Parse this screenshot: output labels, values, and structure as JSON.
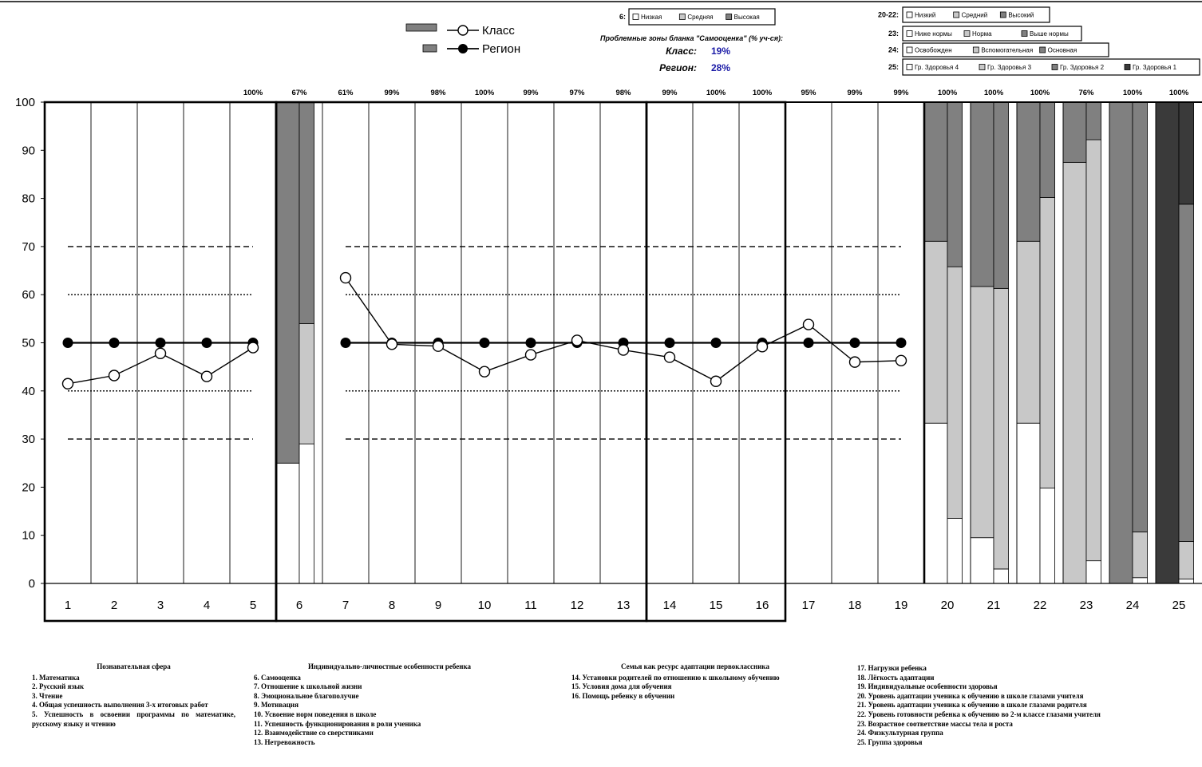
{
  "legend": {
    "class_label": "Класс",
    "region_label": "Регион"
  },
  "problem_zones": {
    "title": "Проблемные зоны бланка \"Самооценка\" (% уч-ся):",
    "class_label": "Класс:",
    "class_value": "19%",
    "region_label": "Регион:",
    "region_value": "28%",
    "value_color": "#1a1aa6"
  },
  "legend_boxes": [
    {
      "prefix": "6:",
      "items": [
        "Низкая",
        "Средняя",
        "Высокая"
      ]
    },
    {
      "prefix": "20-22:",
      "items": [
        "Низкий",
        "Средний",
        "Высокий"
      ]
    },
    {
      "prefix": "23:",
      "items": [
        "Ниже нормы",
        "Норма",
        "Выше нормы"
      ]
    },
    {
      "prefix": "24:",
      "items": [
        "Освобожден",
        "Вспомогательная",
        "Основная"
      ]
    },
    {
      "prefix": "25:",
      "items": [
        "Гр. Здоровья 4",
        "Гр. Здоровья 3",
        "Гр. Здоровья 2",
        "Гр. Здоровья 1"
      ]
    }
  ],
  "chart_data": {
    "type": "line",
    "ylim": [
      0,
      100
    ],
    "yticks": [
      0,
      10,
      20,
      30,
      40,
      50,
      60,
      70,
      80,
      90,
      100
    ],
    "categories": [
      "1",
      "2",
      "3",
      "4",
      "5",
      "6",
      "7",
      "8",
      "9",
      "10",
      "11",
      "12",
      "13",
      "14",
      "15",
      "16",
      "17",
      "18",
      "19",
      "20",
      "21",
      "22",
      "23",
      "24",
      "25"
    ],
    "top_percentages": [
      "",
      "",
      "",
      "",
      "100%",
      "67%",
      "61%",
      "99%",
      "98%",
      "100%",
      "99%",
      "97%",
      "98%",
      "99%",
      "100%",
      "100%",
      "95%",
      "99%",
      "99%",
      "100%",
      "100%",
      "100%",
      "76%",
      "100%",
      "100%"
    ],
    "series": [
      {
        "name": "Класс",
        "x": [
          "1",
          "2",
          "3",
          "4",
          "5",
          "7",
          "8",
          "9",
          "10",
          "11",
          "12",
          "13",
          "14",
          "15",
          "16",
          "17",
          "18",
          "19"
        ],
        "values": [
          41.5,
          43.2,
          47.8,
          43.0,
          49.0,
          63.5,
          49.7,
          49.3,
          44.0,
          47.5,
          50.5,
          48.5,
          47.0,
          42.0,
          49.2,
          53.8,
          46.0,
          46.3
        ]
      },
      {
        "name": "Регион",
        "x": [
          "1",
          "2",
          "3",
          "4",
          "5",
          "7",
          "8",
          "9",
          "10",
          "11",
          "12",
          "13",
          "14",
          "15",
          "16",
          "17",
          "18",
          "19"
        ],
        "values": [
          50,
          50,
          50,
          50,
          50,
          50,
          50,
          50,
          50,
          50,
          50,
          50,
          50,
          50,
          50,
          50,
          50,
          50
        ]
      }
    ],
    "reference_lines": {
      "dashed": [
        30,
        70
      ],
      "dotted": [
        40,
        60
      ]
    },
    "stacked_bars": [
      {
        "category": "6",
        "class": [
          25,
          0,
          75
        ],
        "region": [
          29,
          25,
          46
        ]
      },
      {
        "category": "20",
        "class": [
          33.3,
          37.8,
          28.9
        ],
        "region": [
          13.5,
          52.3,
          34.2
        ]
      },
      {
        "category": "21",
        "class": [
          9.5,
          52.2,
          38.3
        ],
        "region": [
          3,
          58.3,
          38.7
        ]
      },
      {
        "category": "22",
        "class": [
          33.3,
          37.8,
          28.9
        ],
        "region": [
          19.8,
          60.4,
          19.8
        ]
      },
      {
        "category": "23",
        "class": [
          0,
          87.5,
          12.5
        ],
        "region": [
          4.7,
          87.5,
          7.8
        ]
      },
      {
        "category": "24",
        "class": [
          0,
          0,
          100
        ],
        "region": [
          1.2,
          9.5,
          89.3
        ]
      },
      {
        "category": "25",
        "class": [
          0,
          0,
          0,
          100
        ],
        "region": [
          0.9,
          7.8,
          70.1,
          21.2
        ]
      }
    ]
  },
  "notes": [
    {
      "title": "Познавательная сфера",
      "lines": [
        "1. Математика",
        "2. Русский язык",
        "3. Чтение",
        "4. Общая успешность выполнения 3-х итоговых работ",
        "5. Успешность в освоении программы по математике, русскому языку и чтению"
      ]
    },
    {
      "title": "Индивидуально-личностные особенности ребенка",
      "lines": [
        "6. Самооценка",
        "7. Отношение к школьной жизни",
        "8. Эмоциональное благополучие",
        "9. Мотивация",
        "10. Усвоение норм поведения в школе",
        "11. Успешность функционирования в роли ученика",
        "12. Взаимодействие со сверстниками",
        "13. Нетревожность"
      ]
    },
    {
      "title": "Семья как ресурс адаптации первоклассника",
      "lines": [
        "14. Установки родителей по отношению к школьному обучению",
        "15. Условия дома для обучения",
        "16. Помощь ребенку в обучении"
      ]
    },
    {
      "title": "",
      "lines": [
        "17. Нагрузки ребенка",
        "18. Лёгкость адаптации",
        "19. Индивидуальные особенности здоровья",
        "20. Уровень адаптации ученика к обучению в школе глазами учителя",
        "21. Уровень адаптации ученика к обучению в школе глазами родителя",
        "22. Уровень готовности ребенка к обучению во 2-м классе глазами учителя",
        "23. Возрастное соответствие массы тела и роста",
        "24. Физкультурная группа",
        "25. Группа здоровья"
      ]
    }
  ]
}
